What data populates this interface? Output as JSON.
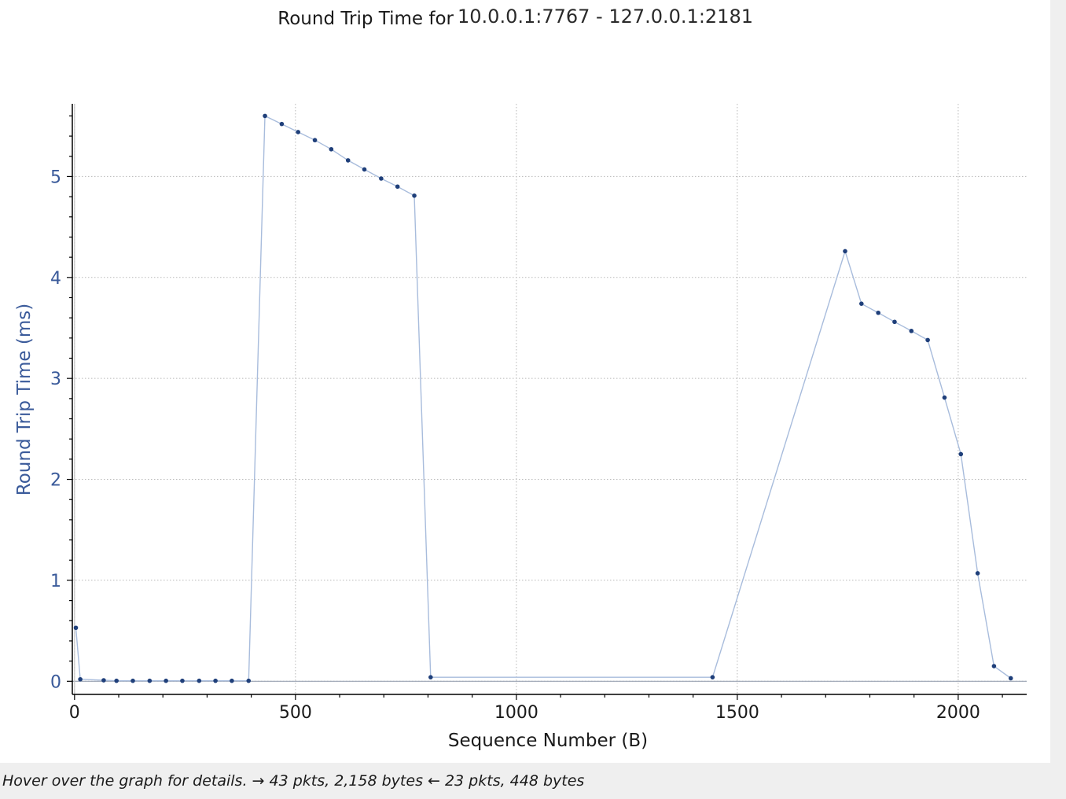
{
  "window": {
    "status_text": "Hover over the graph for details. → 43 pkts, 2,158 bytes ← 23 pkts, 448 bytes"
  },
  "colors": {
    "axis_text": "#3a5a9a",
    "series_line": "#a8bcdc",
    "series_marker": "#1f3f7a",
    "grid": "#b8b8b8"
  },
  "chart_data": {
    "type": "line",
    "title_prefix": "Round Trip Time for",
    "title_addr": "10.0.0.1:7767 - 127.0.0.1:2181",
    "xlabel": "Sequence Number (B)",
    "ylabel": "Round Trip Time (ms)",
    "xlim": [
      -5,
      2155
    ],
    "ylim": [
      -0.13,
      5.72
    ],
    "xticks": [
      0,
      500,
      1000,
      1500,
      2000
    ],
    "yticks": [
      0,
      1,
      2,
      3,
      4,
      5
    ],
    "grid": true,
    "legend": "none",
    "series": [
      {
        "x": [
          3,
          13,
          66,
          95,
          132,
          170,
          207,
          244,
          282,
          319,
          356,
          394,
          431,
          469,
          506,
          544,
          581,
          619,
          656,
          694,
          731,
          769,
          806,
          1444,
          1744,
          1781,
          1819,
          1856,
          1894,
          1931,
          1969,
          2006,
          2044,
          2081,
          2119
        ],
        "y": [
          0.53,
          0.02,
          0.01,
          0.005,
          0.005,
          0.005,
          0.005,
          0.005,
          0.005,
          0.005,
          0.005,
          0.005,
          5.6,
          5.52,
          5.44,
          5.36,
          5.27,
          5.16,
          5.07,
          4.98,
          4.9,
          4.81,
          0.04,
          0.04,
          4.26,
          3.74,
          3.65,
          3.56,
          3.47,
          3.38,
          2.81,
          2.25,
          1.07,
          0.15,
          0.03
        ]
      }
    ]
  }
}
